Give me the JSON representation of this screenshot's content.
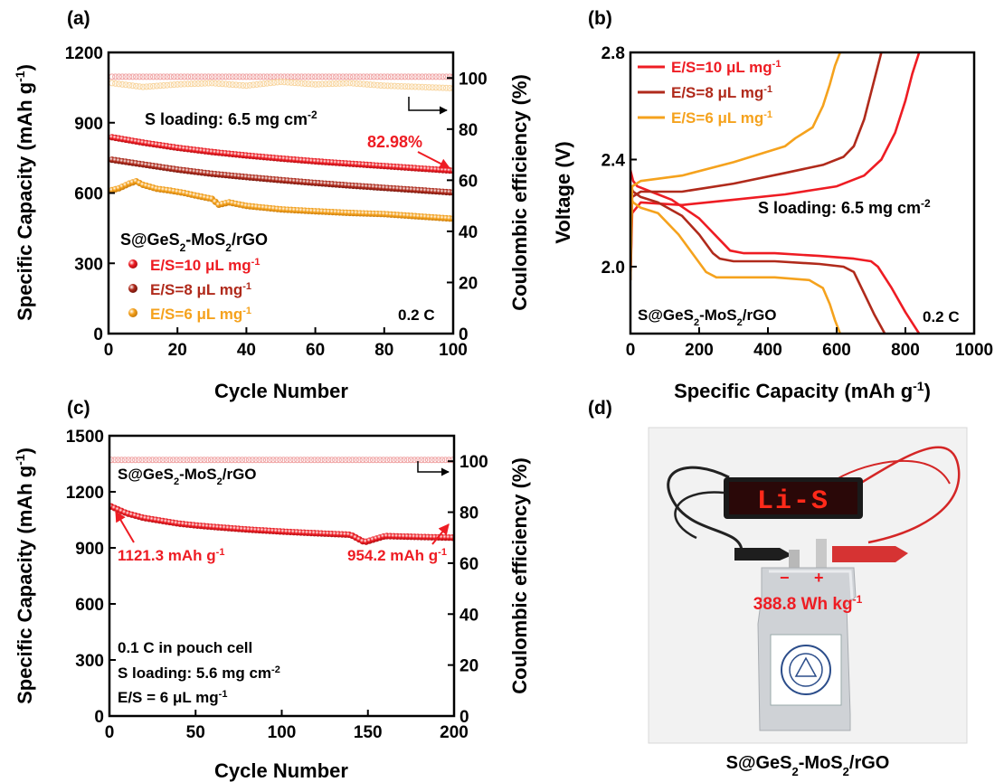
{
  "panels": {
    "a": "(a)",
    "b": "(b)",
    "c": "(c)",
    "d": "(d)"
  },
  "colors": {
    "red": "#ee1c23",
    "darkred": "#b02a1b",
    "orange": "#f5a21d",
    "pink": "#f0a3a3",
    "peach": "#f8d49c"
  },
  "chart_data": [
    {
      "id": "a",
      "type": "scatter",
      "xlabel": "Cycle Number",
      "ylabel": "Specific Capacity (mAh g-1)",
      "ylabel_parts": [
        "Specific Capacity (mAh g",
        "-1",
        ")"
      ],
      "y2label": "Coulombic efficiency (%)",
      "xlim": [
        0,
        100
      ],
      "ylim": [
        0,
        1200
      ],
      "y2lim": [
        0,
        110
      ],
      "xticks": [
        0,
        20,
        40,
        60,
        80,
        100
      ],
      "yticks": [
        0,
        300,
        600,
        900,
        1200
      ],
      "y2ticks": [
        0,
        20,
        40,
        60,
        80,
        100
      ],
      "series": [
        {
          "name": "E/S=10 μL mg-1",
          "color": "red",
          "axis": "left",
          "x": [
            1,
            10,
            20,
            30,
            40,
            50,
            60,
            70,
            80,
            90,
            100
          ],
          "y": [
            838,
            815,
            793,
            775,
            760,
            747,
            735,
            725,
            715,
            705,
            695
          ]
        },
        {
          "name": "E/S=8 μL mg-1",
          "color": "darkred",
          "axis": "left",
          "x": [
            1,
            10,
            20,
            30,
            40,
            50,
            60,
            70,
            80,
            90,
            100
          ],
          "y": [
            742,
            722,
            700,
            682,
            668,
            655,
            643,
            632,
            622,
            612,
            602
          ]
        },
        {
          "name": "E/S=6 μL mg-1",
          "color": "orange",
          "axis": "left",
          "x": [
            1,
            3,
            6,
            8,
            10,
            14,
            18,
            22,
            25,
            30,
            32,
            35,
            40,
            50,
            60,
            70,
            80,
            90,
            100
          ],
          "y": [
            612,
            620,
            640,
            650,
            635,
            618,
            610,
            600,
            590,
            575,
            550,
            560,
            545,
            530,
            522,
            515,
            510,
            500,
            490
          ]
        },
        {
          "name": "CE E/S=10",
          "color": "pink",
          "axis": "right",
          "x": [
            1,
            100
          ],
          "y": [
            100.5,
            100.5
          ]
        },
        {
          "name": "CE E/S=6",
          "color": "peach",
          "axis": "right",
          "x": [
            1,
            10,
            20,
            30,
            40,
            50,
            60,
            70,
            80,
            90,
            100
          ],
          "y": [
            98,
            96.5,
            97.5,
            98,
            97,
            98.5,
            97.5,
            98,
            97,
            96.5,
            96
          ]
        }
      ],
      "legend": {
        "title_parts": [
          "S@GeS",
          "2",
          "-MoS",
          "2",
          "/rGO"
        ],
        "entries": [
          {
            "label": "E/S=10 μL mg",
            "sup": "-1",
            "color": "red"
          },
          {
            "label": "E/S=8 μL mg",
            "sup": "-1",
            "color": "darkred"
          },
          {
            "label": "E/S=6 μL mg",
            "sup": "-1",
            "color": "orange"
          }
        ]
      },
      "annotations": {
        "loading_parts": [
          "S loading: 6.5 mg cm",
          "-2"
        ],
        "retention": "82.98%",
        "rate": "0.2 C"
      }
    },
    {
      "id": "b",
      "type": "line",
      "xlabel": "Specific Capacity (mAh g-1)",
      "xlabel_parts": [
        "Specific Capacity (mAh g",
        "-1",
        ")"
      ],
      "ylabel": "Voltage (V)",
      "xlim": [
        0,
        1000
      ],
      "ylim": [
        1.75,
        2.8
      ],
      "xticks": [
        0,
        200,
        400,
        600,
        800,
        1000
      ],
      "yticks": [
        2.0,
        2.4,
        2.8
      ],
      "series": [
        {
          "name": "E/S=10 μL mg-1 discharge",
          "color": "red",
          "x": [
            0,
            8,
            20,
            60,
            120,
            200,
            260,
            290,
            330,
            420,
            550,
            650,
            700,
            720,
            760,
            800,
            840
          ],
          "y": [
            2.36,
            2.32,
            2.3,
            2.28,
            2.25,
            2.18,
            2.1,
            2.06,
            2.05,
            2.05,
            2.04,
            2.03,
            2.02,
            2.0,
            1.92,
            1.83,
            1.75
          ]
        },
        {
          "name": "E/S=10 μL mg-1 charge",
          "color": "red",
          "x": [
            0,
            5,
            30,
            150,
            300,
            450,
            600,
            680,
            730,
            770,
            800,
            820,
            840
          ],
          "y": [
            1.95,
            2.2,
            2.24,
            2.23,
            2.25,
            2.27,
            2.3,
            2.34,
            2.4,
            2.5,
            2.62,
            2.72,
            2.8
          ]
        },
        {
          "name": "E/S=8 μL mg-1 discharge",
          "color": "darkred",
          "x": [
            0,
            8,
            30,
            80,
            150,
            200,
            240,
            260,
            300,
            420,
            550,
            620,
            650,
            680,
            710,
            740
          ],
          "y": [
            2.3,
            2.28,
            2.26,
            2.24,
            2.19,
            2.12,
            2.05,
            2.03,
            2.02,
            2.02,
            2.01,
            2.0,
            1.98,
            1.9,
            1.82,
            1.75
          ]
        },
        {
          "name": "E/S=8 μL mg-1 charge",
          "color": "darkred",
          "x": [
            0,
            5,
            30,
            150,
            300,
            450,
            560,
            620,
            650,
            680,
            700,
            720,
            730
          ],
          "y": [
            1.95,
            2.26,
            2.28,
            2.28,
            2.31,
            2.35,
            2.38,
            2.41,
            2.45,
            2.55,
            2.65,
            2.75,
            2.8
          ]
        },
        {
          "name": "E/S=6 μL mg-1 discharge",
          "color": "orange",
          "x": [
            0,
            8,
            30,
            80,
            140,
            180,
            220,
            250,
            300,
            420,
            520,
            560,
            580,
            595,
            610
          ],
          "y": [
            2.26,
            2.24,
            2.22,
            2.2,
            2.12,
            2.05,
            1.98,
            1.96,
            1.96,
            1.96,
            1.95,
            1.92,
            1.86,
            1.8,
            1.75
          ]
        },
        {
          "name": "E/S=6 μL mg-1 charge",
          "color": "orange",
          "x": [
            0,
            5,
            30,
            150,
            300,
            450,
            480,
            530,
            560,
            580,
            595,
            610
          ],
          "y": [
            1.95,
            2.3,
            2.32,
            2.34,
            2.39,
            2.45,
            2.48,
            2.52,
            2.6,
            2.68,
            2.75,
            2.8
          ]
        }
      ],
      "legend": {
        "entries": [
          {
            "label": "E/S=10 μL mg",
            "sup": "-1",
            "color": "red"
          },
          {
            "label": "E/S=8 μL mg",
            "sup": "-1",
            "color": "darkred"
          },
          {
            "label": "E/S=6 μL mg",
            "sup": "-1",
            "color": "orange"
          }
        ]
      },
      "annotations": {
        "loading_parts": [
          "S loading: 6.5 mg cm",
          "-2"
        ],
        "material_parts": [
          "S@GeS",
          "2",
          "-MoS",
          "2",
          "/rGO"
        ],
        "rate": "0.2 C"
      }
    },
    {
      "id": "c",
      "type": "scatter",
      "xlabel": "Cycle Number",
      "ylabel": "Specific Capacity (mAh g-1)",
      "ylabel_parts": [
        "Specific Capacity (mAh g",
        "-1",
        ")"
      ],
      "y2label": "Coulombic efficiency (%)",
      "xlim": [
        0,
        200
      ],
      "ylim": [
        0,
        1500
      ],
      "y2lim": [
        0,
        110
      ],
      "xticks": [
        0,
        50,
        100,
        150,
        200
      ],
      "yticks": [
        0,
        300,
        600,
        900,
        1200,
        1500
      ],
      "y2ticks": [
        0,
        20,
        40,
        60,
        80,
        100
      ],
      "series": [
        {
          "name": "capacity",
          "color": "red",
          "axis": "left",
          "x": [
            1,
            5,
            10,
            20,
            30,
            40,
            50,
            60,
            80,
            100,
            120,
            140,
            148,
            160,
            180,
            200
          ],
          "y": [
            1121.3,
            1105,
            1085,
            1060,
            1045,
            1030,
            1020,
            1012,
            998,
            987,
            978,
            970,
            930,
            963,
            958,
            954.2
          ]
        },
        {
          "name": "CE",
          "color": "pink",
          "axis": "right",
          "x": [
            1,
            200
          ],
          "y": [
            100.5,
            100.5
          ]
        }
      ],
      "annotations": {
        "material_parts": [
          "S@GeS",
          "2",
          "-MoS",
          "2",
          "/rGO"
        ],
        "first_parts": [
          "1121.3 mAh g",
          "-1"
        ],
        "last_parts": [
          "954.2 mAh g",
          "-1"
        ],
        "cell": "0.1 C in pouch cell",
        "loading_parts": [
          "S loading: 5.6 mg cm",
          "-2"
        ],
        "es_parts": [
          "E/S = 6 μL mg",
          "-1"
        ]
      }
    }
  ],
  "panel_d": {
    "display_text": "Li-S",
    "energy_parts": [
      "388.8 Wh kg",
      "-1"
    ],
    "minus": "−",
    "plus": "+",
    "caption_parts": [
      "S@GeS",
      "2",
      "-MoS",
      "2",
      "/rGO"
    ]
  }
}
